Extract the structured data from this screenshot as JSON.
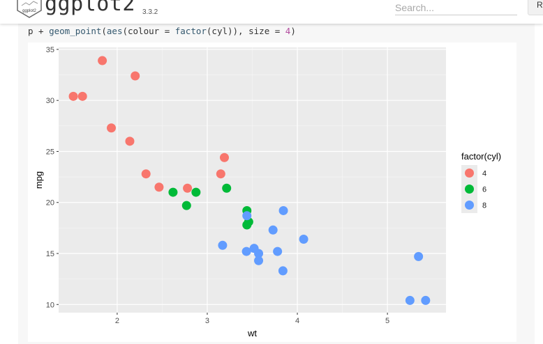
{
  "header": {
    "logo_text": "ggplot2",
    "brand": "ggplot2",
    "version": "3.3.2",
    "search_placeholder": "Search...",
    "nav_item": "R"
  },
  "code": {
    "p": "p",
    "plus": " + ",
    "fn": "geom_point",
    "open": "(",
    "aes": "aes",
    "open2": "(colour = ",
    "factor": "factor",
    "arg": "(cyl)), size = ",
    "size": "4",
    "close": ")"
  },
  "chart_data": {
    "type": "scatter",
    "xlabel": "wt",
    "ylabel": "mpg",
    "xlim": [
      1.35,
      5.65
    ],
    "ylim": [
      9.2,
      35.2
    ],
    "xticks": [
      2,
      3,
      4,
      5
    ],
    "yticks": [
      10,
      15,
      20,
      25,
      30,
      35
    ],
    "grid": true,
    "legend_position": "right",
    "legend_title": "factor(cyl)",
    "colors": {
      "4": "#F8766D",
      "6": "#00BA38",
      "8": "#619CFF"
    },
    "panel_background": "#EBEBEB",
    "series": [
      {
        "name": "4",
        "x": [
          2.32,
          2.2,
          1.615,
          1.835,
          2.465,
          1.935,
          2.14,
          1.513,
          3.19,
          3.15,
          2.78
        ],
        "y": [
          22.8,
          32.4,
          30.4,
          33.9,
          21.5,
          27.3,
          26.0,
          30.4,
          24.4,
          22.8,
          21.4
        ]
      },
      {
        "name": "6",
        "x": [
          2.62,
          2.875,
          3.215,
          3.44,
          3.46,
          3.44,
          2.77
        ],
        "y": [
          21.0,
          21.0,
          21.4,
          19.2,
          18.1,
          17.8,
          19.7
        ]
      },
      {
        "name": "8",
        "x": [
          3.44,
          3.57,
          4.07,
          3.73,
          3.78,
          5.25,
          5.424,
          5.345,
          3.52,
          3.435,
          3.84,
          3.845,
          3.17,
          3.57
        ],
        "y": [
          18.7,
          14.3,
          16.4,
          17.3,
          15.2,
          10.4,
          10.4,
          14.7,
          15.5,
          15.2,
          13.3,
          19.2,
          15.8,
          15.0
        ]
      }
    ]
  }
}
